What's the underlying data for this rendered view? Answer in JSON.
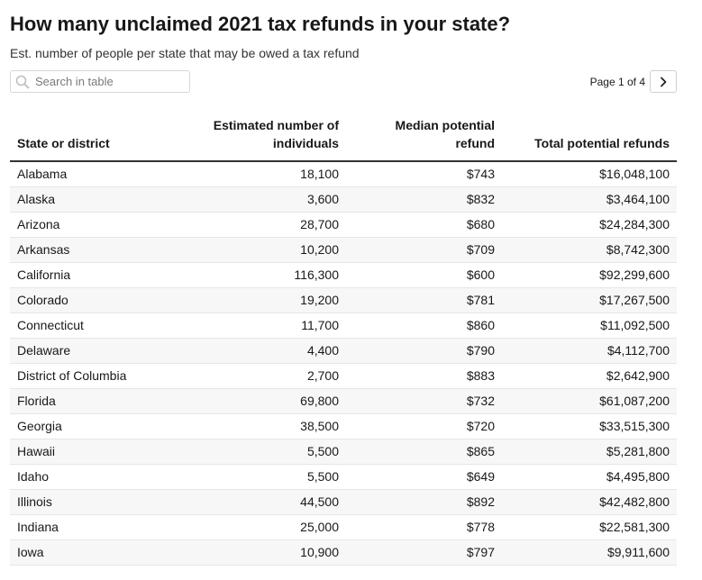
{
  "header": {
    "title": "How many unclaimed 2021 tax refunds in your state?",
    "subtitle": "Est. number of people per state that may be owed a tax refund"
  },
  "search": {
    "placeholder": "Search in table",
    "icon": "search-icon"
  },
  "pagination": {
    "label": "Page 1 of 4",
    "current_page": 1,
    "total_pages": 4,
    "next_icon": "chevron-right-icon"
  },
  "colors": {
    "text": "#181818",
    "header_rule": "#333333",
    "row_stripe": "#f7f7f7",
    "row_rule": "#e6e6e6"
  },
  "chart_data": {
    "type": "table",
    "columns": [
      "State or district",
      "Estimated number of individuals",
      "Median potential refund",
      "Total potential refunds"
    ],
    "rows": [
      [
        "Alabama",
        "18,100",
        "$743",
        "$16,048,100"
      ],
      [
        "Alaska",
        "3,600",
        "$832",
        "$3,464,100"
      ],
      [
        "Arizona",
        "28,700",
        "$680",
        "$24,284,300"
      ],
      [
        "Arkansas",
        "10,200",
        "$709",
        "$8,742,300"
      ],
      [
        "California",
        "116,300",
        "$600",
        "$92,299,600"
      ],
      [
        "Colorado",
        "19,200",
        "$781",
        "$17,267,500"
      ],
      [
        "Connecticut",
        "11,700",
        "$860",
        "$11,092,500"
      ],
      [
        "Delaware",
        "4,400",
        "$790",
        "$4,112,700"
      ],
      [
        "District of Columbia",
        "2,700",
        "$883",
        "$2,642,900"
      ],
      [
        "Florida",
        "69,800",
        "$732",
        "$61,087,200"
      ],
      [
        "Georgia",
        "38,500",
        "$720",
        "$33,515,300"
      ],
      [
        "Hawaii",
        "5,500",
        "$865",
        "$5,281,800"
      ],
      [
        "Idaho",
        "5,500",
        "$649",
        "$4,495,800"
      ],
      [
        "Illinois",
        "44,500",
        "$892",
        "$42,482,800"
      ],
      [
        "Indiana",
        "25,000",
        "$778",
        "$22,581,300"
      ],
      [
        "Iowa",
        "10,900",
        "$797",
        "$9,911,600"
      ]
    ]
  }
}
